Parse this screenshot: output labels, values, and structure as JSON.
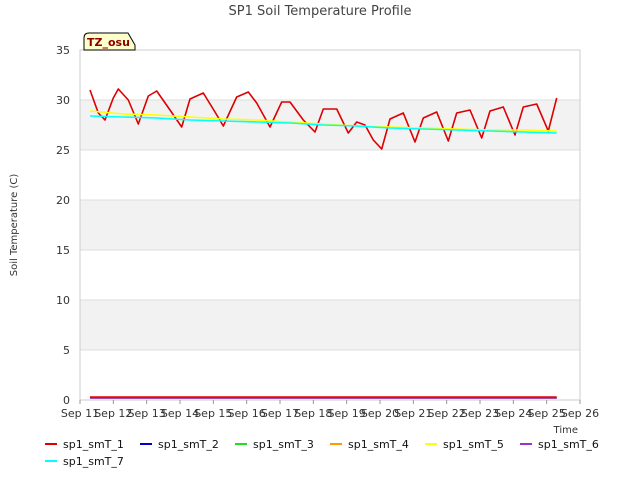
{
  "chart_data": {
    "type": "line",
    "title": "SP1 Soil Temperature Profile",
    "xlabel": "Time",
    "ylabel": "Soil Temperature (C)",
    "badge": "TZ_osu",
    "xlim": [
      0,
      15
    ],
    "ylim": [
      0,
      35
    ],
    "x_ticks": [
      {
        "value": 0,
        "label": "Sep 11"
      },
      {
        "value": 1,
        "label": "Sep 12"
      },
      {
        "value": 2,
        "label": "Sep 13"
      },
      {
        "value": 3,
        "label": "Sep 14"
      },
      {
        "value": 4,
        "label": "Sep 15"
      },
      {
        "value": 5,
        "label": "Sep 16"
      },
      {
        "value": 6,
        "label": "Sep 17"
      },
      {
        "value": 7,
        "label": "Sep 18"
      },
      {
        "value": 8,
        "label": "Sep 19"
      },
      {
        "value": 9,
        "label": "Sep 20"
      },
      {
        "value": 10,
        "label": "Sep 21"
      },
      {
        "value": 11,
        "label": "Sep 22"
      },
      {
        "value": 12,
        "label": "Sep 23"
      },
      {
        "value": 13,
        "label": "Sep 24"
      },
      {
        "value": 14,
        "label": "Sep 25"
      },
      {
        "value": 15,
        "label": "Sep 26"
      }
    ],
    "y_ticks": [
      0,
      5,
      10,
      15,
      20,
      25,
      30,
      35
    ],
    "series": [
      {
        "name": "sp1_smT_1",
        "color": "#dd0000",
        "x": [
          0.3,
          0.55,
          0.75,
          1.0,
          1.15,
          1.45,
          1.75,
          2.05,
          2.3,
          2.7,
          3.05,
          3.3,
          3.7,
          4.05,
          4.3,
          4.7,
          5.05,
          5.3,
          5.7,
          6.05,
          6.3,
          6.7,
          7.05,
          7.3,
          7.7,
          8.05,
          8.3,
          8.55,
          8.8,
          9.05,
          9.3,
          9.7,
          10.05,
          10.3,
          10.7,
          11.05,
          11.3,
          11.7,
          12.05,
          12.3,
          12.7,
          13.05,
          13.3,
          13.7,
          14.05,
          14.3
        ],
        "values": [
          31.0,
          28.7,
          28.0,
          30.2,
          31.1,
          30.0,
          27.6,
          30.4,
          30.9,
          29.0,
          27.3,
          30.1,
          30.7,
          28.8,
          27.4,
          30.3,
          30.8,
          29.7,
          27.3,
          29.8,
          29.8,
          28.0,
          26.8,
          29.1,
          29.1,
          26.7,
          27.8,
          27.5,
          26.0,
          25.1,
          28.1,
          28.7,
          25.8,
          28.2,
          28.8,
          25.9,
          28.7,
          29.0,
          26.2,
          28.9,
          29.3,
          26.5,
          29.3,
          29.6,
          26.9,
          30.2
        ]
      },
      {
        "name": "sp1_smT_2",
        "color": "#0000cc",
        "x": [
          0.3,
          14.3
        ],
        "values": [
          0.2,
          0.2
        ]
      },
      {
        "name": "sp1_smT_3",
        "color": "#22dd22",
        "x": [
          0.3,
          14.3
        ],
        "values": [
          0.2,
          0.2
        ]
      },
      {
        "name": "sp1_smT_4",
        "color": "#ff9900",
        "x": [
          0.3,
          14.3
        ],
        "values": [
          0.2,
          0.2
        ]
      },
      {
        "name": "sp1_smT_5",
        "color": "#ffff00",
        "x": [
          0.3,
          1.3,
          2.3,
          3.3,
          4.3,
          5.3,
          6.3,
          7.3,
          8.3,
          9.3,
          10.3,
          11.3,
          12.3,
          13.3,
          14.3
        ],
        "values": [
          28.9,
          28.6,
          28.5,
          28.3,
          28.1,
          28.0,
          27.8,
          27.6,
          27.4,
          27.3,
          27.2,
          27.1,
          27.0,
          27.0,
          26.9
        ]
      },
      {
        "name": "sp1_smT_6",
        "color": "#9933cc",
        "x": [
          0.3,
          14.3
        ],
        "values": [
          0.2,
          0.2
        ]
      },
      {
        "name": "sp1_smT_7",
        "color": "#00ffff",
        "x": [
          0.3,
          1.3,
          2.3,
          3.3,
          4.3,
          5.3,
          6.3,
          7.3,
          8.3,
          9.3,
          10.3,
          11.3,
          12.3,
          13.3,
          14.3
        ],
        "values": [
          28.4,
          28.3,
          28.2,
          28.0,
          27.9,
          27.8,
          27.7,
          27.5,
          27.4,
          27.2,
          27.1,
          27.0,
          26.9,
          26.8,
          26.7
        ]
      }
    ],
    "bottom_line": {
      "color": "#dd0000",
      "value": 0.2,
      "x": [
        0.3,
        14.3
      ]
    }
  }
}
